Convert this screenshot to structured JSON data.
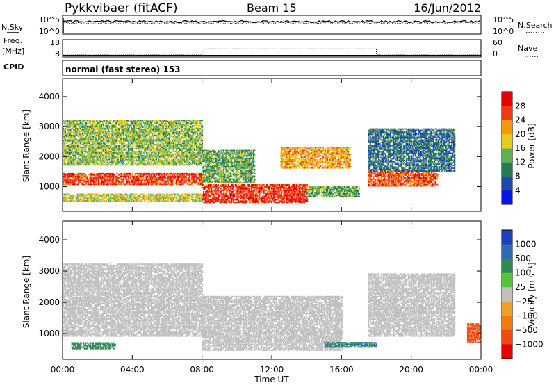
{
  "header": {
    "site": "Pykkvibaer (fitACF)",
    "beam": "Beam 15",
    "date": "16/Jun/2012"
  },
  "noise_panel": {
    "left_label": "N.Sky",
    "right_label": "N.Search",
    "ticks": [
      "10^5",
      "10^0"
    ]
  },
  "freq_panel": {
    "left_label_1": "Freq.",
    "left_label_2": "[MHz]",
    "left_ticks": [
      "18",
      "8"
    ],
    "right_label": "Nave",
    "right_ticks": [
      "60",
      "0"
    ],
    "freq_mhz": 8.9,
    "nave_segments": [
      {
        "from": "00:00",
        "to": "08:00",
        "value": 10
      },
      {
        "from": "08:00",
        "to": "18:00",
        "value": 28
      },
      {
        "from": "18:00",
        "to": "24:00",
        "value": 10
      }
    ]
  },
  "cpid_panel": {
    "label": "CPID",
    "text": "normal (fast stereo) 153"
  },
  "power_panel": {
    "ylabel": "Slant Range [km]",
    "yticks": [
      "1000",
      "2000",
      "3000",
      "4000"
    ],
    "colorbar_label": "Power [dB]",
    "colorbar_ticks": [
      "4",
      "8",
      "12",
      "16",
      "20",
      "24",
      "28"
    ],
    "colorbar_colors": [
      "#0016e6",
      "#1f49a8",
      "#277a55",
      "#63ad56",
      "#e6cc20",
      "#f59a0e",
      "#ef3a12",
      "#e60000"
    ]
  },
  "velocity_panel": {
    "ylabel": "Slant Range [km]",
    "yticks": [
      "1000",
      "2000",
      "3000",
      "4000"
    ],
    "colorbar_label": "Velocity [m s⁻¹]",
    "colorbar_ticks": [
      "1000",
      "500",
      "100",
      "25",
      "−25",
      "−100",
      "−500",
      "−1000"
    ],
    "colorbar_colors": [
      "#1f3fbf",
      "#2e6bb0",
      "#2f8a56",
      "#57c23d",
      "#c0c0bd",
      "#f0a02a",
      "#f07a12",
      "#f04a10",
      "#e60000"
    ]
  },
  "x_axis": {
    "label": "Time UT",
    "ticks": [
      "00:00",
      "04:00",
      "08:00",
      "12:00",
      "16:00",
      "20:00",
      "00:00"
    ]
  },
  "chart_data": {
    "type": "heatmap",
    "x_range_hours": [
      0,
      24
    ],
    "y_range_km": [
      180,
      4600
    ],
    "power_db_range": [
      0,
      30
    ],
    "power_bands": [
      {
        "start_ut": 0.0,
        "end_ut": 8.0,
        "range_km": [
          1050,
          1450
        ],
        "power_db": 25
      },
      {
        "start_ut": 0.0,
        "end_ut": 8.0,
        "range_km": [
          1700,
          3200
        ],
        "power_db": 14
      },
      {
        "start_ut": 0.0,
        "end_ut": 8.0,
        "range_km": [
          500,
          750
        ],
        "power_db": 16
      },
      {
        "start_ut": 8.0,
        "end_ut": 14.0,
        "range_km": [
          450,
          1050
        ],
        "power_db": 26
      },
      {
        "start_ut": 8.0,
        "end_ut": 11.0,
        "range_km": [
          1100,
          2200
        ],
        "power_db": 12
      },
      {
        "start_ut": 12.5,
        "end_ut": 16.5,
        "range_km": [
          1600,
          2300
        ],
        "power_db": 20
      },
      {
        "start_ut": 14.0,
        "end_ut": 17.0,
        "range_km": [
          650,
          1000
        ],
        "power_db": 12
      },
      {
        "start_ut": 17.5,
        "end_ut": 21.5,
        "range_km": [
          1000,
          1500
        ],
        "power_db": 24
      },
      {
        "start_ut": 17.5,
        "end_ut": 22.5,
        "range_km": [
          1500,
          2900
        ],
        "power_db": 8
      }
    ],
    "velocity_bands": [
      {
        "start_ut": 0.0,
        "end_ut": 8.0,
        "range_km": [
          900,
          3200
        ],
        "velocity_ms": 0
      },
      {
        "start_ut": 0.5,
        "end_ut": 3.0,
        "range_km": [
          500,
          700
        ],
        "velocity_ms": 150
      },
      {
        "start_ut": 8.0,
        "end_ut": 16.0,
        "range_km": [
          450,
          2200
        ],
        "velocity_ms": 0
      },
      {
        "start_ut": 15.0,
        "end_ut": 18.0,
        "range_km": [
          550,
          700
        ],
        "velocity_ms": 300
      },
      {
        "start_ut": 17.5,
        "end_ut": 22.5,
        "range_km": [
          900,
          2900
        ],
        "velocity_ms": 0
      },
      {
        "start_ut": 23.2,
        "end_ut": 24.0,
        "range_km": [
          700,
          1300
        ],
        "velocity_ms": -400
      }
    ]
  }
}
